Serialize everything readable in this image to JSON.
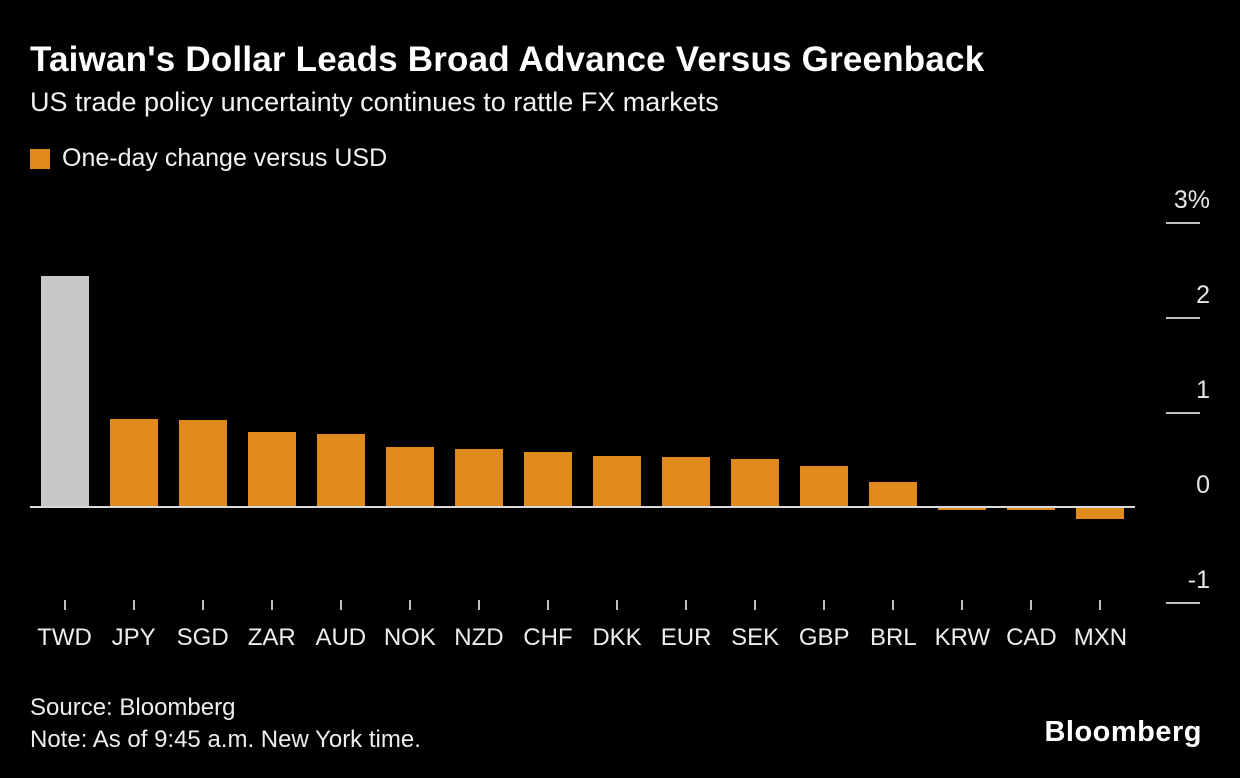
{
  "title": "Taiwan's Dollar Leads Broad Advance Versus Greenback",
  "subtitle": "US trade policy uncertainty continues to rattle FX markets",
  "legend": {
    "label": "One-day change versus USD",
    "swatch_color": "#e08a1e"
  },
  "source": "Source: Bloomberg",
  "note": "Note: As of 9:45 a.m. New York time.",
  "brand": "Bloomberg",
  "chart_data": {
    "type": "bar",
    "title": "Taiwan's Dollar Leads Broad Advance Versus Greenback",
    "subtitle": "US trade policy uncertainty continues to rattle FX markets",
    "series_name": "One-day change versus USD",
    "categories": [
      "TWD",
      "JPY",
      "SGD",
      "ZAR",
      "AUD",
      "NOK",
      "NZD",
      "CHF",
      "DKK",
      "EUR",
      "SEK",
      "GBP",
      "BRL",
      "KRW",
      "CAD",
      "MXN"
    ],
    "values": [
      2.43,
      0.93,
      0.92,
      0.79,
      0.77,
      0.63,
      0.61,
      0.58,
      0.54,
      0.53,
      0.51,
      0.43,
      0.26,
      -0.03,
      -0.03,
      -0.13
    ],
    "unit": "%",
    "highlight_category": "TWD",
    "highlight_color": "#c8c8c8",
    "bar_color": "#e08a1e",
    "axis_side": "right",
    "ylim": [
      -1.4,
      3.35
    ],
    "grid": false,
    "yticks": {
      "values": [
        3,
        2,
        1,
        0,
        -1
      ],
      "labels": [
        "3%",
        "2",
        "1",
        "0",
        "-1"
      ]
    }
  }
}
